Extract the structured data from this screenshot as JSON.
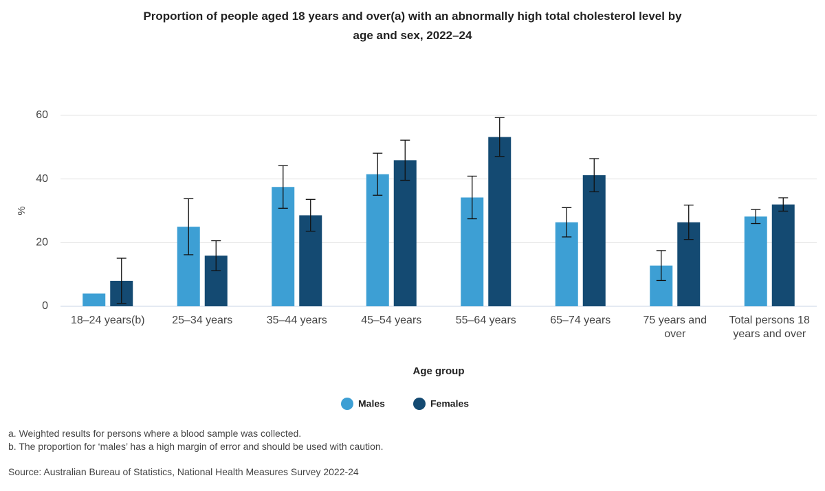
{
  "chart_data": {
    "type": "bar",
    "title": "Proportion of people aged 18 years and over(a) with an abnormally high total cholesterol level by age and sex, 2022–24",
    "x_label": "Age group",
    "y_label": "%",
    "categories": [
      "18–24 years(b)",
      "25–34 years",
      "35–44 years",
      "45–54 years",
      "55–64 years",
      "65–74 years",
      "75 years and over",
      "Total persons 18 years and over"
    ],
    "series": [
      {
        "name": "Males",
        "color": "#3d9fd4",
        "values": [
          4.0,
          25.0,
          37.5,
          41.5,
          34.2,
          26.4,
          12.8,
          28.2
        ],
        "errors": [
          null,
          8.8,
          6.7,
          6.6,
          6.7,
          4.6,
          4.7,
          2.2
        ]
      },
      {
        "name": "Females",
        "color": "#144a72",
        "values": [
          8.0,
          15.9,
          28.6,
          45.9,
          53.2,
          41.2,
          26.4,
          32.0
        ],
        "errors": [
          7.1,
          4.7,
          5.0,
          6.3,
          6.1,
          5.2,
          5.4,
          2.1
        ]
      }
    ],
    "ylim": [
      0,
      60
    ],
    "yticks": [
      0,
      20,
      40,
      60
    ],
    "grid": true,
    "legend": "bottom",
    "footnotes": [
      "a. Weighted results for persons where a blood sample was collected.",
      "b. The proportion for ‘males’ has a high margin of error and should be used with caution."
    ],
    "source": "Source: Australian Bureau of Statistics, National Health Measures Survey 2022-24"
  }
}
